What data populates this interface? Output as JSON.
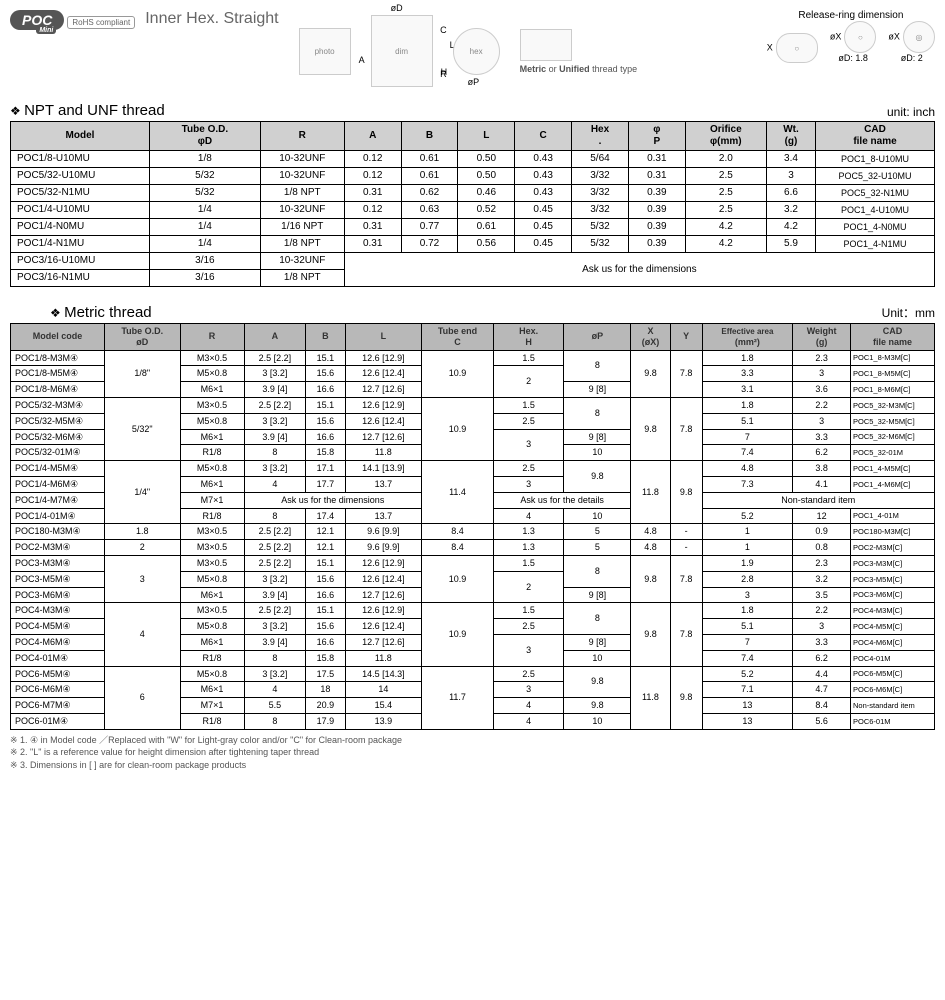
{
  "header": {
    "brand": "POC",
    "brand_sub": "Mini",
    "title": "Inner Hex. Straight",
    "rohs": "RoHS compliant",
    "release_ring": "Release-ring dimension",
    "ring1_d": "øD: 1.8",
    "ring2_d": "øD: 2",
    "thread_note": "Metric or Unified thread type",
    "dims": {
      "phiD": "øD",
      "C": "C",
      "L": "L",
      "B": "B",
      "A": "A",
      "R": "R",
      "H": "H",
      "phiP": "øP",
      "X": "X",
      "phiX": "øX"
    }
  },
  "table1": {
    "section": "NPT and UNF thread",
    "unit": "unit: inch",
    "headers": [
      "Model",
      "Tube O.D.\nφD",
      "R",
      "A",
      "B",
      "L",
      "C",
      "Hex\n.",
      "φ\nP",
      "Orifice\nφ(mm)",
      "Wt.\n(g)",
      "CAD\nfile name"
    ],
    "rows": [
      [
        "POC1/8-U10MU",
        "1/8",
        "10-32UNF",
        "0.12",
        "0.61",
        "0.50",
        "0.43",
        "5/64",
        "0.31",
        "2.0",
        "3.4",
        "POC1_8-U10MU"
      ],
      [
        "POC5/32-U10MU",
        "5/32",
        "10-32UNF",
        "0.12",
        "0.61",
        "0.50",
        "0.43",
        "3/32",
        "0.31",
        "2.5",
        "3",
        "POC5_32-U10MU"
      ],
      [
        "POC5/32-N1MU",
        "5/32",
        "1/8 NPT",
        "0.31",
        "0.62",
        "0.46",
        "0.43",
        "3/32",
        "0.39",
        "2.5",
        "6.6",
        "POC5_32-N1MU"
      ],
      [
        "POC1/4-U10MU",
        "1/4",
        "10-32UNF",
        "0.12",
        "0.63",
        "0.52",
        "0.45",
        "3/32",
        "0.39",
        "2.5",
        "3.2",
        "POC1_4-U10MU"
      ],
      [
        "POC1/4-N0MU",
        "1/4",
        "1/16 NPT",
        "0.31",
        "0.77",
        "0.61",
        "0.45",
        "5/32",
        "0.39",
        "4.2",
        "4.2",
        "POC1_4-N0MU"
      ],
      [
        "POC1/4-N1MU",
        "1/4",
        "1/8 NPT",
        "0.31",
        "0.72",
        "0.56",
        "0.45",
        "5/32",
        "0.39",
        "4.2",
        "5.9",
        "POC1_4-N1MU"
      ]
    ],
    "ask_rows": [
      [
        "POC3/16-U10MU",
        "3/16",
        "10-32UNF"
      ],
      [
        "POC3/16-N1MU",
        "3/16",
        "1/8 NPT"
      ]
    ],
    "ask_text": "Ask us for the dimensions"
  },
  "table2": {
    "section": "Metric thread",
    "unit": "Unit：mm",
    "headers": [
      "Model code",
      "Tube O.D.\nøD",
      "R",
      "A",
      "B",
      "L",
      "Tube end\nC",
      "Hex.\nH",
      "øP",
      "X\n(øX)",
      "Y",
      "Effective area\n(mm²)",
      "Weight\n(g)",
      "CAD\nfile name"
    ],
    "ask_dims": "Ask us for the dimensions",
    "ask_details": "Ask us for the details",
    "nonstd": "Non-standard item"
  },
  "footnotes": {
    "n1": "※ 1. ④ in Model code ／Replaced with \"W\" for Light-gray color and/or \"C\" for Clean-room package",
    "n2": "※ 2. \"L\" is a reference value for height dimension after tightening taper thread",
    "n3": "※ 3. Dimensions in [ ] are for clean-room package products"
  }
}
